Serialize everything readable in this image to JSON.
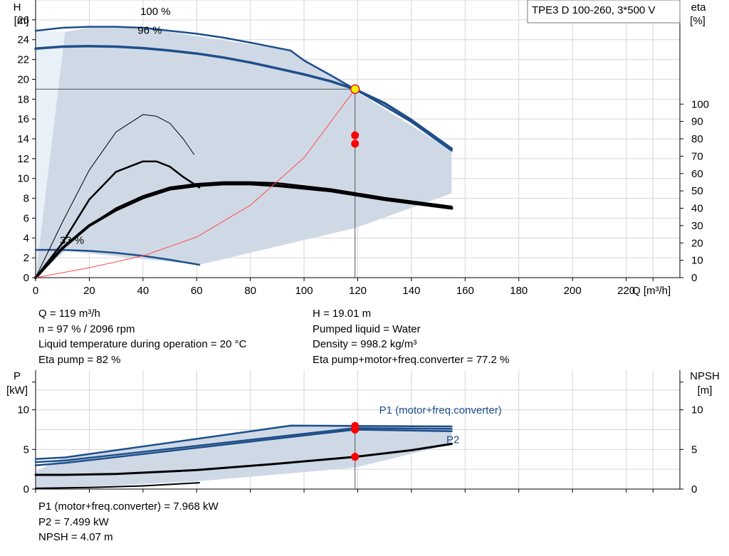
{
  "chart_data": [
    {
      "type": "line",
      "title": "TPE3 D 100-260, 3*500 V",
      "x_axis": {
        "label": "Q [m³/h]",
        "range": [
          0,
          240
        ],
        "ticks": [
          0,
          20,
          40,
          60,
          80,
          100,
          120,
          140,
          160,
          180,
          200,
          220
        ]
      },
      "y_axis_left": {
        "label_line1": "H",
        "label_line2": "[m]",
        "range": [
          0,
          28
        ],
        "ticks": [
          0,
          2,
          4,
          6,
          8,
          10,
          12,
          14,
          16,
          18,
          20,
          22,
          24,
          26
        ]
      },
      "y_axis_right": {
        "label_line1": "eta",
        "label_line2": "[%]",
        "range": [
          0,
          160
        ],
        "ticks": [
          0,
          10,
          20,
          30,
          40,
          50,
          60,
          70,
          80,
          90,
          100
        ]
      },
      "grid": true,
      "colors": {
        "curve": "#1e4f8a",
        "envelope": "#cfd9e6",
        "light": "#e8f0f8",
        "eta": "#000000",
        "system": "#ff4a4a",
        "marker": "#ff0000",
        "duty": "#ffee00"
      },
      "speed_labels": [
        {
          "text": "100 %",
          "q": 39,
          "h": 26.5
        },
        {
          "text": "96 %",
          "q": 38,
          "h": 24.6
        },
        {
          "text": "33 %",
          "q": 9,
          "h": 3.4
        }
      ],
      "series": [
        {
          "kind": "head",
          "width": 2.5,
          "points": [
            [
              0,
              24.9
            ],
            [
              10,
              25.2
            ],
            [
              20,
              25.3
            ],
            [
              30,
              25.3
            ],
            [
              40,
              25.2
            ],
            [
              50,
              24.9
            ],
            [
              60,
              24.6
            ],
            [
              70,
              24.2
            ],
            [
              80,
              23.7
            ],
            [
              95,
              22.9
            ],
            [
              100,
              21.9
            ],
            [
              110,
              20.4
            ],
            [
              119,
              19.0
            ],
            [
              130,
              17.3
            ],
            [
              140,
              15.7
            ],
            [
              155,
              12.8
            ]
          ]
        },
        {
          "kind": "head",
          "width": 3.5,
          "points": [
            [
              0,
              23.1
            ],
            [
              10,
              23.3
            ],
            [
              20,
              23.35
            ],
            [
              30,
              23.3
            ],
            [
              40,
              23.15
            ],
            [
              50,
              22.9
            ],
            [
              60,
              22.6
            ],
            [
              70,
              22.2
            ],
            [
              80,
              21.7
            ],
            [
              90,
              21.1
            ],
            [
              100,
              20.5
            ],
            [
              110,
              19.8
            ],
            [
              119,
              19.0
            ],
            [
              130,
              17.6
            ],
            [
              140,
              15.9
            ],
            [
              155,
              13.0
            ]
          ]
        },
        {
          "kind": "head",
          "width": 2.5,
          "points": [
            [
              0,
              2.8
            ],
            [
              10,
              2.8
            ],
            [
              20,
              2.7
            ],
            [
              30,
              2.5
            ],
            [
              40,
              2.2
            ],
            [
              50,
              1.8
            ],
            [
              61,
              1.3
            ]
          ]
        },
        {
          "kind": "eta",
          "width": 2.5,
          "points": [
            [
              0,
              0
            ],
            [
              10,
              17
            ],
            [
              20,
              30
            ],
            [
              30,
              40
            ],
            [
              40,
              47
            ],
            [
              50,
              52
            ],
            [
              60,
              54
            ],
            [
              70,
              55
            ],
            [
              80,
              55
            ],
            [
              90,
              54.5
            ],
            [
              110,
              51
            ],
            [
              130,
              46
            ],
            [
              155,
              41
            ]
          ]
        },
        {
          "kind": "eta",
          "width": 4,
          "points": [
            [
              0,
              0
            ],
            [
              10,
              17
            ],
            [
              20,
              30
            ],
            [
              30,
              39
            ],
            [
              40,
              46
            ],
            [
              50,
              51
            ],
            [
              60,
              53
            ],
            [
              70,
              54
            ],
            [
              80,
              54
            ],
            [
              90,
              53
            ],
            [
              110,
              50
            ],
            [
              130,
              45
            ],
            [
              155,
              40
            ]
          ]
        },
        {
          "kind": "eta",
          "width": 2.5,
          "points": [
            [
              0,
              0
            ],
            [
              10,
              20
            ],
            [
              20,
              45
            ],
            [
              30,
              61
            ],
            [
              40,
              67
            ],
            [
              45,
              67
            ],
            [
              50,
              64
            ],
            [
              55,
              58
            ],
            [
              61,
              52
            ]
          ]
        },
        {
          "kind": "eta",
          "width": 1,
          "points": [
            [
              0,
              0
            ],
            [
              10,
              32
            ],
            [
              20,
              62
            ],
            [
              30,
              84
            ],
            [
              40,
              94
            ],
            [
              45,
              93
            ],
            [
              50,
              89
            ],
            [
              55,
              80
            ],
            [
              59,
              71
            ]
          ]
        },
        {
          "kind": "system",
          "width": 1,
          "points": [
            [
              0,
              0
            ],
            [
              20,
              1.0
            ],
            [
              40,
              2.2
            ],
            [
              60,
              4.1
            ],
            [
              80,
              7.3
            ],
            [
              100,
              12.1
            ],
            [
              119,
              19.0
            ]
          ]
        }
      ],
      "duty_point": {
        "q": 119,
        "h": 19.01,
        "eta_pump": 82,
        "eta_total": 77.2
      },
      "envelope_points": [
        [
          0,
          0
        ],
        [
          11,
          24.8
        ],
        [
          20,
          25.2
        ],
        [
          40,
          25.2
        ],
        [
          95,
          22.9
        ],
        [
          155,
          12.8
        ],
        [
          155,
          8.5
        ],
        [
          119,
          5.0
        ],
        [
          61,
          1.3
        ],
        [
          11,
          2.7
        ],
        [
          0,
          0
        ]
      ],
      "light_points": [
        [
          0,
          0
        ],
        [
          0,
          24.9
        ],
        [
          11,
          24.8
        ],
        [
          11,
          2.7
        ],
        [
          0,
          0
        ]
      ]
    },
    {
      "type": "line",
      "x_axis": {
        "range": [
          0,
          240
        ],
        "ticks": [
          0,
          20,
          40,
          60,
          80,
          100,
          120,
          140,
          160,
          180,
          200,
          220
        ]
      },
      "y_axis_left": {
        "label_line1": "P",
        "label_line2": "[kW]",
        "range": [
          0,
          15
        ],
        "ticks": [
          0,
          5,
          10
        ]
      },
      "y_axis_right": {
        "label_line1": "NPSH",
        "label_line2": "[m]",
        "range": [
          0,
          15
        ],
        "ticks": [
          0,
          5,
          10
        ]
      },
      "grid": true,
      "series_labels": [
        {
          "text": "P1 (motor+freq.converter)",
          "q": 128,
          "p": 9.5
        },
        {
          "text": "P2",
          "q": 153,
          "p": 5.8
        }
      ],
      "series": [
        {
          "name": "P1 (motor+freq.converter)",
          "kind": "p1",
          "width": 2.5,
          "points": [
            [
              0,
              3.8
            ],
            [
              11,
              4.0
            ],
            [
              95,
              8.0
            ],
            [
              119,
              7.97
            ],
            [
              155,
              7.9
            ]
          ]
        },
        {
          "kind": "p1",
          "width": 2.5,
          "points": [
            [
              0,
              3.4
            ],
            [
              11,
              3.6
            ],
            [
              119,
              7.7
            ],
            [
              155,
              7.6
            ]
          ]
        },
        {
          "name": "P2",
          "kind": "p2",
          "width": 2.5,
          "points": [
            [
              0,
              3.0
            ],
            [
              11,
              3.3
            ],
            [
              119,
              7.5
            ],
            [
              155,
              7.3
            ]
          ]
        },
        {
          "kind": "npsh",
          "width": 3,
          "points": [
            [
              0,
              1.8
            ],
            [
              11,
              1.8
            ],
            [
              30,
              1.9
            ],
            [
              60,
              2.4
            ],
            [
              90,
              3.2
            ],
            [
              119,
              4.07
            ],
            [
              140,
              4.9
            ],
            [
              155,
              5.7
            ]
          ]
        },
        {
          "kind": "npsh",
          "width": 2,
          "points": [
            [
              0,
              0.1
            ],
            [
              20,
              0.2
            ],
            [
              40,
              0.4
            ],
            [
              61,
              0.8
            ]
          ]
        }
      ],
      "markers": [
        {
          "q": 119,
          "v": 7.968
        },
        {
          "q": 119,
          "v": 7.499
        },
        {
          "q": 119,
          "v": 4.07
        }
      ],
      "envelope_points": [
        [
          0,
          2.2
        ],
        [
          11,
          4.1
        ],
        [
          95,
          8.15
        ],
        [
          155,
          8.0
        ],
        [
          155,
          5.7
        ],
        [
          119,
          2.7
        ],
        [
          61,
          1.0
        ],
        [
          20,
          0.3
        ],
        [
          0,
          0
        ]
      ]
    }
  ],
  "info_top": {
    "left": [
      "Q = 119 m³/h",
      "n = 97 % / 2096 rpm",
      "Liquid temperature during operation = 20 °C",
      "Eta pump = 82 %"
    ],
    "right": [
      "H = 19.01 m",
      "Pumped liquid = Water",
      "Density = 998.2 kg/m³",
      "Eta pump+motor+freq.converter = 77.2 %"
    ]
  },
  "info_bottom": [
    "P1 (motor+freq.converter) = 7.968 kW",
    "P2 = 7.499 kW",
    "NPSH = 4.07 m"
  ]
}
